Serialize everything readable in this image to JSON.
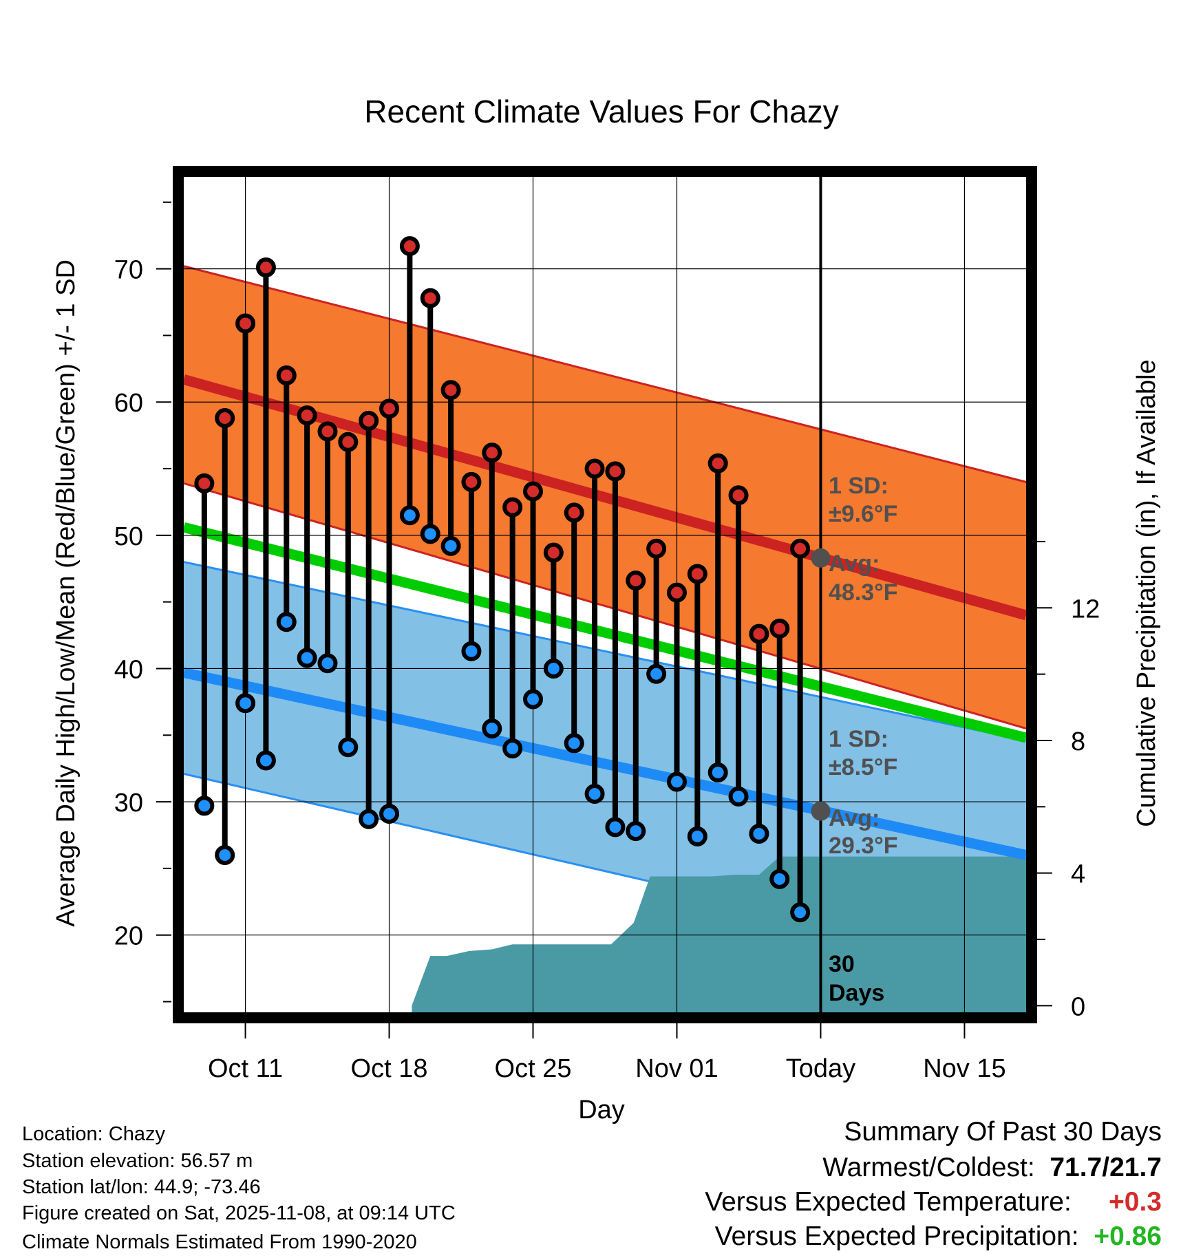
{
  "chart_data": {
    "type": "line",
    "title": "Recent Climate Values For Chazy",
    "xlabel": "Day",
    "ylabel": "Average Daily High/Low/Mean (Red/Blue/Green) +/- 1 SD",
    "y2label": "Cumulative Precipitation (in), If Available",
    "x_range": [
      0,
      41
    ],
    "ylim": [
      14.2,
      76.9
    ],
    "y2lim": [
      -0.2,
      25.0
    ],
    "yticks": [
      20,
      30,
      40,
      50,
      60,
      70
    ],
    "y2ticks": [
      0,
      4,
      8,
      12
    ],
    "xticks": [
      {
        "day": 3.0,
        "label": "Oct 11"
      },
      {
        "day": 10.0,
        "label": "Oct 18"
      },
      {
        "day": 17.0,
        "label": "Oct 25"
      },
      {
        "day": 24.0,
        "label": "Nov 01"
      },
      {
        "day": 31.0,
        "label": "Today"
      },
      {
        "day": 38.0,
        "label": "Nov 15"
      }
    ],
    "today_day": 31.0,
    "days": [
      1,
      2,
      3,
      4,
      5,
      6,
      7,
      8,
      9,
      10,
      11,
      12,
      13,
      14,
      15,
      16,
      17,
      18,
      19,
      20,
      21,
      22,
      23,
      24,
      25,
      26,
      27,
      28,
      29,
      30
    ],
    "highs": [
      53.9,
      58.8,
      65.9,
      70.1,
      62.0,
      59.0,
      57.8,
      57.0,
      58.6,
      59.5,
      71.7,
      67.8,
      60.9,
      54.0,
      56.2,
      52.1,
      53.3,
      48.7,
      51.7,
      55.0,
      54.8,
      46.6,
      49.0,
      45.7,
      47.1,
      55.4,
      53.0,
      42.6,
      43.0,
      49.0
    ],
    "lows": [
      29.7,
      26.0,
      37.4,
      33.1,
      43.5,
      40.8,
      40.4,
      34.1,
      28.7,
      29.1,
      51.5,
      50.1,
      49.2,
      41.3,
      35.5,
      34.0,
      37.7,
      40.0,
      34.4,
      30.6,
      28.1,
      27.8,
      39.6,
      31.5,
      27.4,
      32.2,
      30.4,
      27.6,
      24.2,
      21.7
    ],
    "normal_high_band": {
      "day_start": 0.0,
      "day_end": 41.0,
      "avg": [
        61.7,
        44.0
      ],
      "upper": [
        70.2,
        54.0
      ],
      "lower": [
        53.9,
        35.5
      ]
    },
    "normal_low_band": {
      "day_start": 0.0,
      "day_end": 41.0,
      "avg": [
        39.7,
        26.0
      ],
      "upper": [
        48.0,
        34.6
      ],
      "lower": [
        32.1,
        17.5
      ]
    },
    "normal_mean": {
      "day_start": 0.0,
      "day_end": 41.0,
      "values": [
        50.6,
        34.8
      ]
    },
    "precip_cumulative": [
      [
        11.1,
        0.0
      ],
      [
        12.0,
        1.5
      ],
      [
        12.8,
        1.5
      ],
      [
        13.9,
        1.65
      ],
      [
        15.0,
        1.7
      ],
      [
        16.0,
        1.85
      ],
      [
        20.8,
        1.85
      ],
      [
        21.9,
        2.5
      ],
      [
        22.7,
        3.9
      ],
      [
        24.9,
        3.9
      ],
      [
        25.7,
        3.9
      ],
      [
        26.8,
        3.95
      ],
      [
        28.0,
        3.95
      ],
      [
        29.0,
        4.5
      ],
      [
        41.0,
        4.5
      ]
    ],
    "colors": {
      "high_band": "#f5792f",
      "high_avg": "#cc2222",
      "low_band": "#82c0e6",
      "low_band_edge": "#2b8ff0",
      "low_avg": "#1e8af5",
      "mean": "#00cc00",
      "precip": "#4a9aa5",
      "high_marker": "#d42b2b",
      "low_marker": "#1e90ff",
      "annotation": "#505050",
      "today_marker": "#505050"
    },
    "annotations": {
      "high_sd_label": "1 SD:",
      "high_sd_value": "±9.6°F",
      "high_avg_label": "Avg:",
      "high_avg_value": "48.3°F",
      "low_sd_label": "1 SD:",
      "low_sd_value": "±8.5°F",
      "low_avg_label": "Avg:",
      "low_avg_value": "29.3°F",
      "days_number": "30",
      "days_word": "Days"
    },
    "today_high_avg": 48.3,
    "today_low_avg": 29.3
  },
  "info": {
    "location": "Location: Chazy",
    "elevation": "Station elevation: 56.57 m",
    "latlon": "Station lat/lon: 44.9; -73.46",
    "created": "Figure created on Sat, 2025-11-08, at 09:14 UTC",
    "normals": "Climate Normals Estimated From 1990-2020"
  },
  "summary": {
    "heading": "Summary Of Past 30 Days",
    "warm_cold_label": "Warmest/Coldest:",
    "warm_cold_value": "71.7/21.7",
    "temp_label": "Versus Expected Temperature:",
    "temp_value": "+0.3",
    "temp_color": "#d42b2b",
    "precip_label": "Versus Expected Precipitation:",
    "precip_value": "+0.86",
    "precip_color": "#22b722"
  }
}
